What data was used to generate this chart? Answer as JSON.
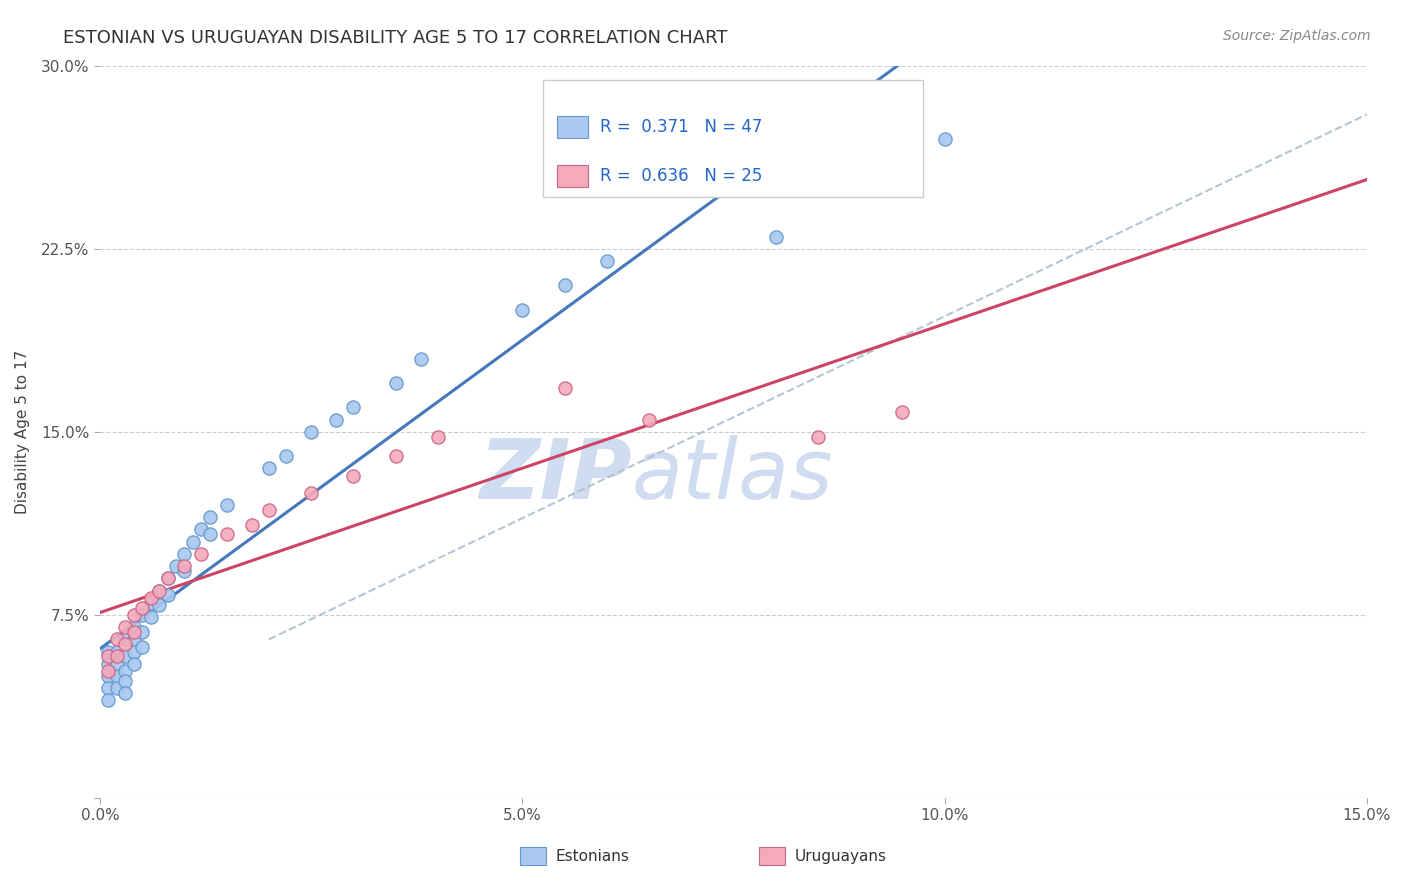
{
  "title": "ESTONIAN VS URUGUAYAN DISABILITY AGE 5 TO 17 CORRELATION CHART",
  "source_text": "Source: ZipAtlas.com",
  "ylabel": "Disability Age 5 to 17",
  "xlim": [
    0.0,
    0.15
  ],
  "ylim": [
    0.0,
    0.3
  ],
  "xticks": [
    0.0,
    0.05,
    0.1,
    0.15
  ],
  "xticklabels": [
    "0.0%",
    "5.0%",
    "10.0%",
    "15.0%"
  ],
  "yticks": [
    0.0,
    0.075,
    0.15,
    0.225,
    0.3
  ],
  "yticklabels": [
    "",
    "7.5%",
    "15.0%",
    "22.5%",
    "30.0%"
  ],
  "color_estonian": "#a8c8f0",
  "color_uruguayan": "#f4aabb",
  "edge_color_estonian": "#6699cc",
  "edge_color_uruguayan": "#cc6688",
  "line_color_estonian": "#4477bb",
  "line_color_uruguayan": "#cc4466",
  "line_color_dashed": "#aabbcc",
  "watermark_color": "#d0ddf0",
  "estonian_x": [
    0.001,
    0.001,
    0.001,
    0.001,
    0.001,
    0.002,
    0.002,
    0.002,
    0.002,
    0.003,
    0.003,
    0.003,
    0.003,
    0.003,
    0.004,
    0.004,
    0.004,
    0.004,
    0.005,
    0.005,
    0.005,
    0.006,
    0.006,
    0.007,
    0.007,
    0.008,
    0.008,
    0.009,
    0.01,
    0.01,
    0.011,
    0.012,
    0.013,
    0.013,
    0.015,
    0.02,
    0.022,
    0.025,
    0.028,
    0.03,
    0.035,
    0.038,
    0.05,
    0.055,
    0.06,
    0.08,
    0.1
  ],
  "estonian_y": [
    0.06,
    0.055,
    0.05,
    0.045,
    0.04,
    0.06,
    0.055,
    0.05,
    0.045,
    0.065,
    0.058,
    0.052,
    0.048,
    0.043,
    0.07,
    0.065,
    0.06,
    0.055,
    0.075,
    0.068,
    0.062,
    0.08,
    0.074,
    0.085,
    0.079,
    0.09,
    0.083,
    0.095,
    0.1,
    0.093,
    0.105,
    0.11,
    0.115,
    0.108,
    0.12,
    0.135,
    0.14,
    0.15,
    0.155,
    0.16,
    0.17,
    0.18,
    0.2,
    0.21,
    0.22,
    0.23,
    0.27
  ],
  "uruguayan_x": [
    0.001,
    0.001,
    0.002,
    0.002,
    0.003,
    0.003,
    0.004,
    0.004,
    0.005,
    0.006,
    0.007,
    0.008,
    0.01,
    0.012,
    0.015,
    0.018,
    0.02,
    0.025,
    0.03,
    0.035,
    0.04,
    0.055,
    0.065,
    0.085,
    0.095
  ],
  "uruguayan_y": [
    0.058,
    0.052,
    0.065,
    0.058,
    0.07,
    0.063,
    0.075,
    0.068,
    0.078,
    0.082,
    0.085,
    0.09,
    0.095,
    0.1,
    0.108,
    0.112,
    0.118,
    0.125,
    0.132,
    0.14,
    0.148,
    0.168,
    0.155,
    0.148,
    0.158
  ],
  "dashed_line": [
    [
      0.02,
      0.15
    ],
    [
      0.065,
      0.28
    ]
  ]
}
